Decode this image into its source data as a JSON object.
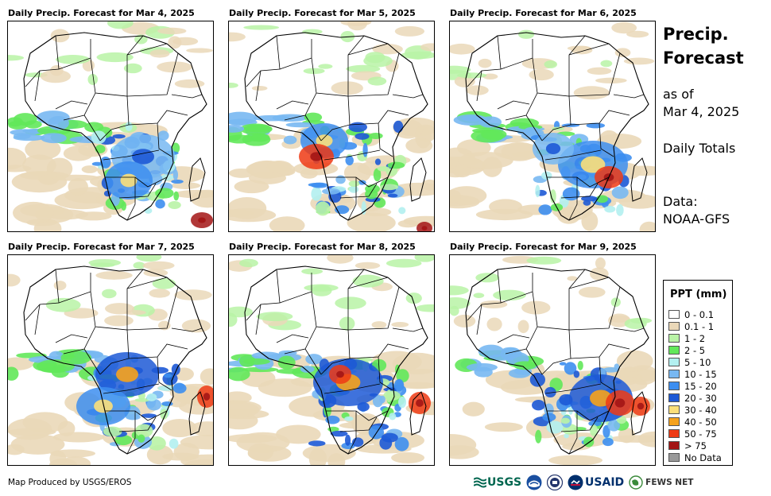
{
  "panels": [
    {
      "title": "Daily Precip. Forecast for Mar 4, 2025"
    },
    {
      "title": "Daily Precip. Forecast for Mar 5, 2025"
    },
    {
      "title": "Daily Precip. Forecast for Mar 6, 2025"
    },
    {
      "title": "Daily Precip. Forecast for Mar 7, 2025"
    },
    {
      "title": "Daily Precip. Forecast for Mar 8, 2025"
    },
    {
      "title": "Daily Precip. Forecast for Mar 9, 2025"
    }
  ],
  "sidebar": {
    "title_line1": "Precip.",
    "title_line2": "Forecast",
    "asof_line1": "as of",
    "asof_line2": "Mar 4, 2025",
    "totals": "Daily Totals",
    "data_line1": "Data:",
    "data_line2": "NOAA-GFS"
  },
  "legend": {
    "title": "PPT (mm)",
    "items": [
      {
        "label": "0 - 0.1",
        "color": "#ffffff"
      },
      {
        "label": "0.1 - 1",
        "color": "#ead8b8"
      },
      {
        "label": "1 - 2",
        "color": "#b9f3a6"
      },
      {
        "label": "2 - 5",
        "color": "#62e85a"
      },
      {
        "label": "5 - 10",
        "color": "#b3f0f0"
      },
      {
        "label": "10 - 15",
        "color": "#78b8f2"
      },
      {
        "label": "15 - 20",
        "color": "#3d8ef0"
      },
      {
        "label": "20 - 30",
        "color": "#1d59d6"
      },
      {
        "label": "30 - 40",
        "color": "#fbdf7a"
      },
      {
        "label": "40 - 50",
        "color": "#f6a21c"
      },
      {
        "label": "50 - 75",
        "color": "#ee3a14"
      },
      {
        "label": "> 75",
        "color": "#a31515"
      },
      {
        "label": "No Data",
        "color": "#9a9a9a"
      }
    ]
  },
  "footer": {
    "credit": "Map Produced by USGS/EROS",
    "logo_usgs": "USGS",
    "logo_usaid": "USAID",
    "logo_fews": "FEWS NET"
  }
}
